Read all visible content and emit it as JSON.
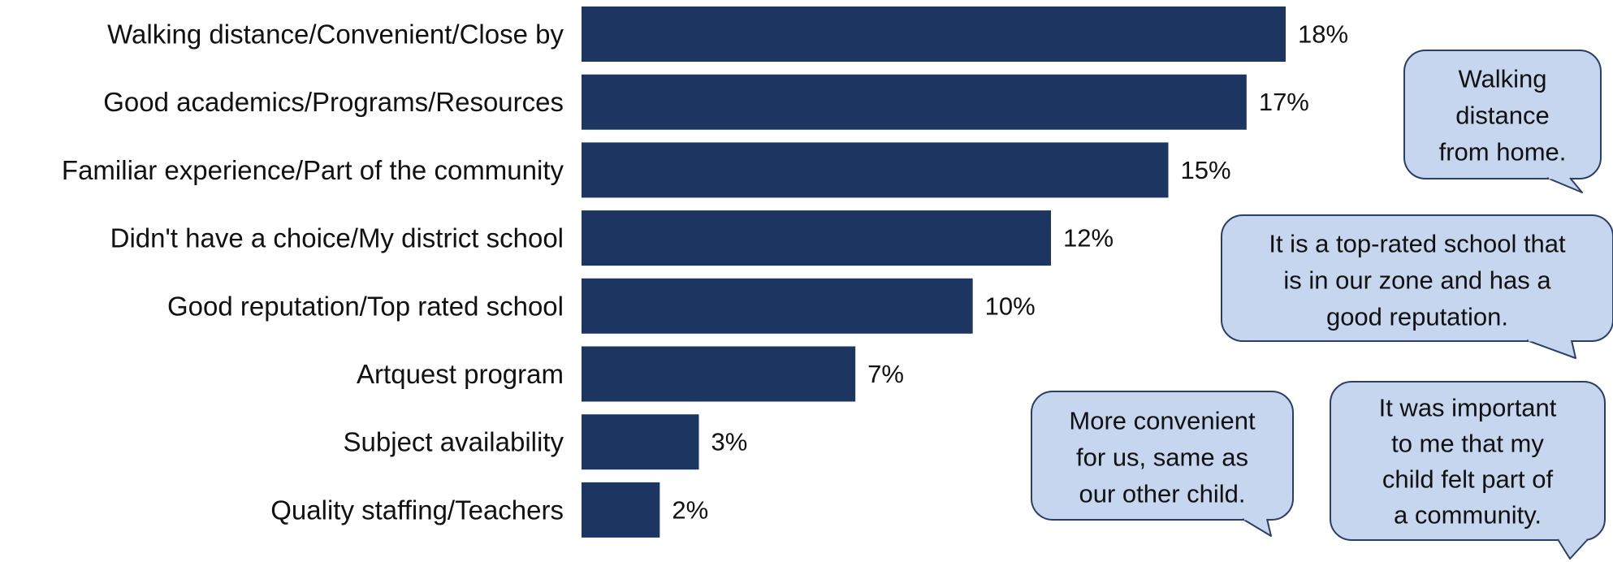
{
  "chart_data": {
    "type": "bar",
    "orientation": "horizontal",
    "categories": [
      "Walking distance/Convenient/Close by",
      "Good academics/Programs/Resources",
      "Familiar experience/Part of the community",
      "Didn't have a choice/My district school",
      "Good reputation/Top rated school",
      "Artquest program",
      "Subject availability",
      "Quality staffing/Teachers"
    ],
    "values": [
      18,
      17,
      15,
      12,
      10,
      7,
      3,
      2
    ],
    "value_labels": [
      "18%",
      "17%",
      "15%",
      "12%",
      "10%",
      "7%",
      "3%",
      "2%"
    ],
    "unit": "%",
    "xlim": [
      0,
      18
    ],
    "grid": false,
    "legend": "none",
    "bar_color": "#1d3661"
  },
  "quotes": [
    {
      "id": "walking",
      "lines": [
        "Walking",
        "distance",
        "from home."
      ]
    },
    {
      "id": "toprated",
      "lines": [
        "It is a top-rated school that",
        "is in our zone and has a",
        "good reputation."
      ]
    },
    {
      "id": "convenient",
      "lines": [
        "More convenient",
        "for us, same as",
        "our other child."
      ]
    },
    {
      "id": "community",
      "lines": [
        "It was important",
        "to me that my",
        "child felt part of",
        "a community."
      ]
    }
  ],
  "colors": {
    "bubble_fill": "#c5d6ee",
    "bubble_stroke": "#2b3f66"
  }
}
